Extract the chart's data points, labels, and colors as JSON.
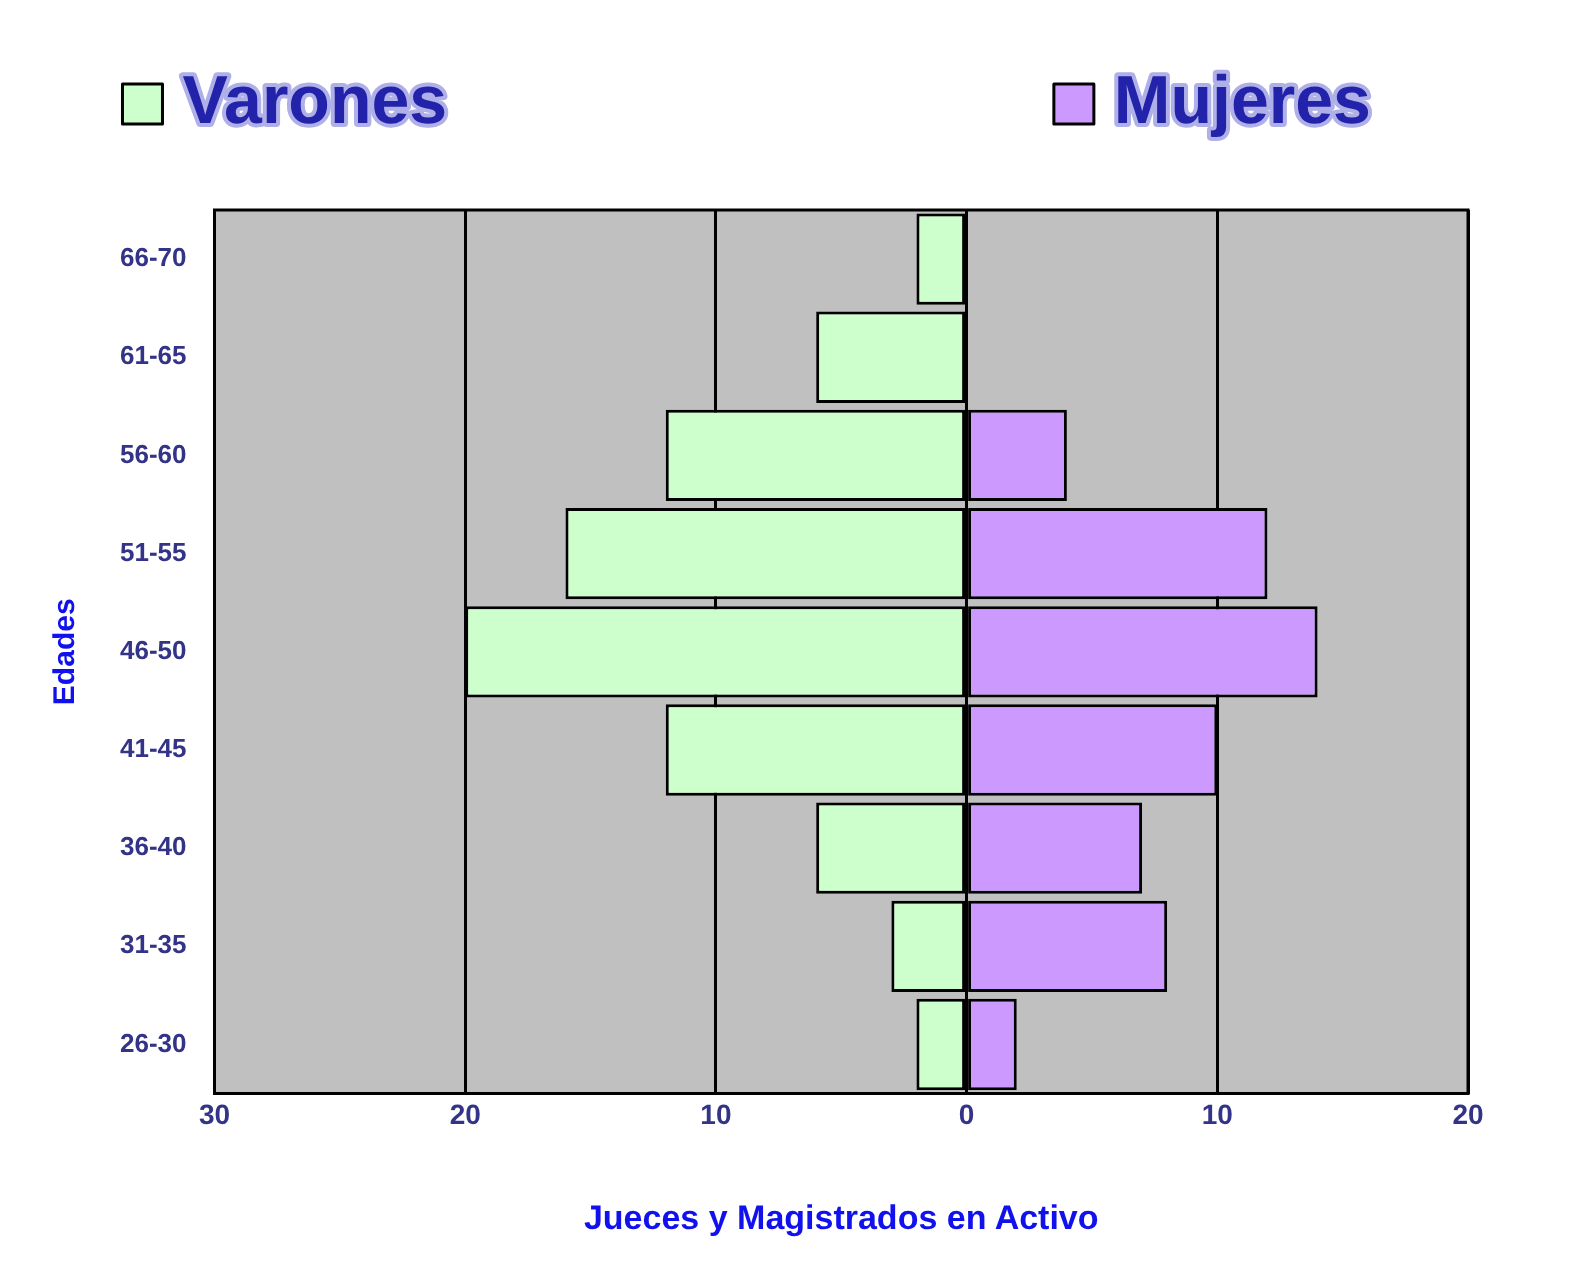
{
  "chart_data": {
    "type": "bar",
    "orientation": "horizontal",
    "stacked": true,
    "xlabel": "Jueces y Magistrados en Activo",
    "ylabel": "Edades",
    "categories": [
      "66-70",
      "61-65",
      "56-60",
      "51-55",
      "46-50",
      "41-45",
      "36-40",
      "31-35",
      "26-30"
    ],
    "series": [
      {
        "name": "Varones",
        "color": "#ccffcc",
        "values": [
          -2,
          -6,
          -12,
          -16,
          -20,
          -12,
          -6,
          -3,
          -2
        ]
      },
      {
        "name": "Mujeres",
        "color": "#cc99ff",
        "values": [
          0,
          0,
          4,
          12,
          14,
          10,
          7,
          8,
          2
        ]
      }
    ],
    "xlim": [
      -30,
      20
    ],
    "xticks": [
      {
        "value": -30,
        "label": "30"
      },
      {
        "value": -20,
        "label": "20"
      },
      {
        "value": -10,
        "label": "10"
      },
      0,
      10,
      20
    ],
    "grid": "x",
    "legend": "top"
  }
}
